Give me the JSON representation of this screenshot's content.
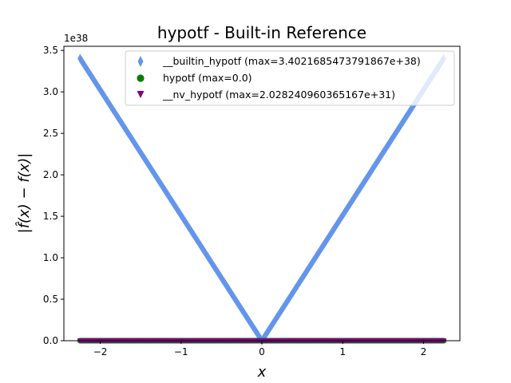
{
  "chart_data": {
    "type": "scatter",
    "title": "hypotf - Built-in Reference",
    "xlabel": "x",
    "ylabel": "|f̂(x) − f(x)|",
    "y_scale_label": "1e38",
    "xlim": [
      -2.45,
      2.45
    ],
    "ylim": [
      0,
      3.55
    ],
    "x_ticks": [
      -2,
      -1,
      0,
      1,
      2
    ],
    "x_tick_labels": [
      "−2",
      "−1",
      "0",
      "1",
      "2"
    ],
    "y_ticks": [
      0.0,
      0.5,
      1.0,
      1.5,
      2.0,
      2.5,
      3.0,
      3.5
    ],
    "y_tick_labels": [
      "0.0",
      "0.5",
      "1.0",
      "1.5",
      "2.0",
      "2.5",
      "3.0",
      "3.5"
    ],
    "grid": false,
    "legend_position": "top-right",
    "series": [
      {
        "name": "__builtin_hypotf (max=3.4021685473791867e+38)",
        "color": "#6495ED",
        "marker": "thin_diamond",
        "x_range": [
          -2.25,
          2.25
        ],
        "shape": "v-shaped, proportional to |x|",
        "x": [
          -2.25,
          -1.5,
          -0.75,
          0,
          0.75,
          1.5,
          2.25
        ],
        "y": [
          3.4021685473791865,
          2.268,
          1.134,
          0,
          1.134,
          2.268,
          3.4021685473791865
        ]
      },
      {
        "name": "hypotf (max=0.0)",
        "color": "#008000",
        "marker": "circle",
        "x_range": [
          -2.25,
          2.25
        ],
        "x": [
          -2.25,
          0,
          2.25
        ],
        "y": [
          0,
          0,
          0
        ]
      },
      {
        "name": "__nv_hypotf (max=2.028240960365167e+31)",
        "color": "#800080",
        "marker": "triangle_down",
        "x_range": [
          -2.25,
          2.25
        ],
        "x": [
          -2.25,
          0,
          2.25
        ],
        "y": [
          2.028240960365167e-07,
          0,
          2.028240960365167e-07
        ]
      }
    ]
  }
}
